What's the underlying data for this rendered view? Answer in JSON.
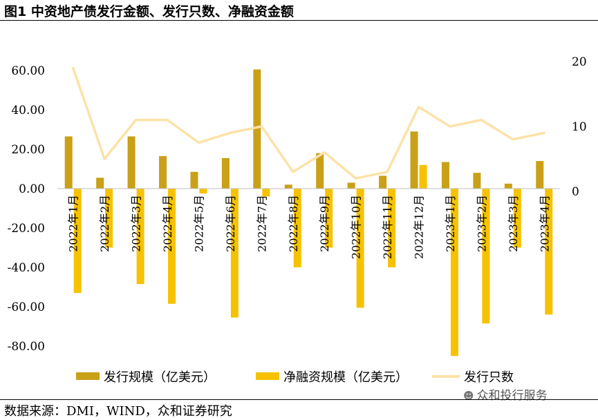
{
  "header": {
    "title": "图1 中资地产债发行金额、发行只数、净融资金额"
  },
  "footer": {
    "source": "数据来源：DMI，WIND，众和证券研究"
  },
  "watermark": {
    "text": "众和投行服务",
    "icon": "wechat-bubble-icon"
  },
  "chart_data": {
    "type": "bar",
    "categories": [
      "2022年1月",
      "2022年2月",
      "2022年3月",
      "2022年4月",
      "2022年5月",
      "2022年6月",
      "2022年7月",
      "2022年8月",
      "2022年9月",
      "2022年10月",
      "2022年11月",
      "2022年12月",
      "2023年1月",
      "2023年2月",
      "2023年3月",
      "2023年4月"
    ],
    "series": [
      {
        "name": "发行规模（亿美元）",
        "kind": "bar",
        "axis": "left",
        "color": "#C9A017",
        "values": [
          26.5,
          5.5,
          26.5,
          16.5,
          8.5,
          15.5,
          60.5,
          2.0,
          18.0,
          3.0,
          6.5,
          29.0,
          13.5,
          8.0,
          2.5,
          14.0
        ]
      },
      {
        "name": "净融资规模（亿美元）",
        "kind": "bar",
        "axis": "left",
        "color": "#F6C200",
        "values": [
          -53.0,
          -30.0,
          -48.5,
          -58.5,
          -2.5,
          -65.5,
          -4.0,
          -40.0,
          -30.0,
          -60.5,
          -40.0,
          12.0,
          -85.0,
          -68.5,
          -30.0,
          -64.0
        ]
      },
      {
        "name": "发行只数",
        "kind": "line",
        "axis": "right",
        "color": "#FCE2A8",
        "values": [
          19,
          5,
          11,
          11,
          7.5,
          9,
          10,
          3,
          6,
          2,
          3,
          13,
          10,
          11,
          8,
          9
        ]
      }
    ],
    "left_axis": {
      "min": -80,
      "max": 60,
      "ticks": [
        "60.00",
        "40.00",
        "20.00",
        "0.00",
        "-20.00",
        "-40.00",
        "-60.00",
        "-80.00"
      ]
    },
    "right_axis": {
      "min": 0,
      "max": 20,
      "ticks": [
        "20",
        "10",
        "0"
      ]
    },
    "legend": {
      "position": "bottom"
    },
    "grid": false
  }
}
